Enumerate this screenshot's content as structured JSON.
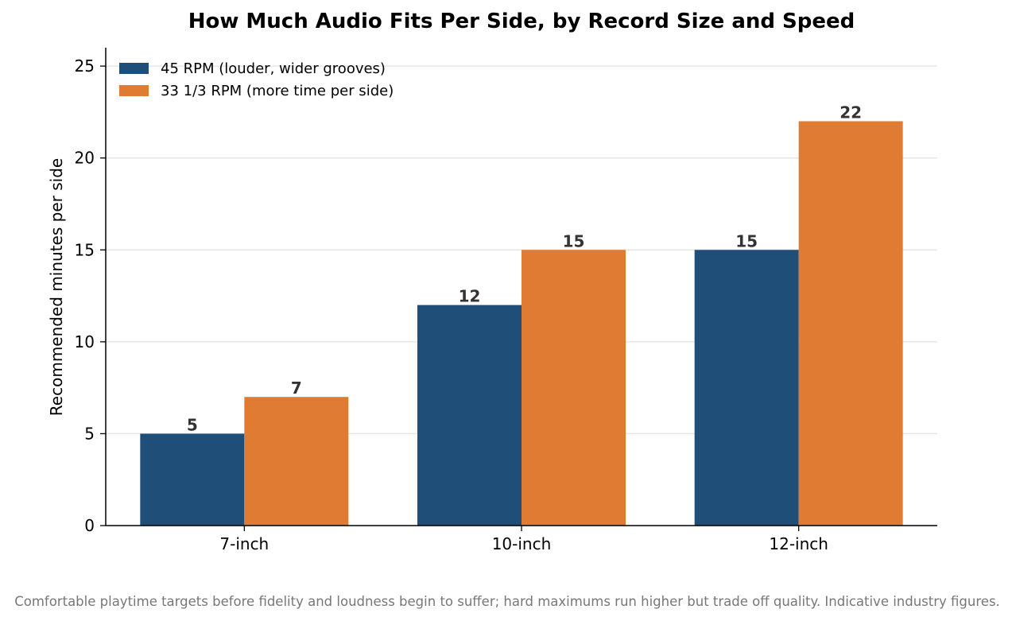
{
  "colors": {
    "series_45": "#1f4e79",
    "series_33": "#e07b33",
    "grid": "#e6e6e6",
    "axis": "#000000"
  },
  "caption": "Comfortable playtime targets before fidelity and loudness begin to suffer; hard maximums run higher but trade off quality. Indicative industry figures.",
  "chart_data": {
    "type": "bar",
    "title": "How Much Audio Fits Per Side, by Record Size and Speed",
    "xlabel": "",
    "ylabel": "Recommended minutes per side",
    "categories": [
      "7-inch",
      "10-inch",
      "12-inch"
    ],
    "series": [
      {
        "name": "45 RPM (louder, wider grooves)",
        "values": [
          5,
          12,
          15
        ]
      },
      {
        "name": "33 1/3 RPM (more time per side)",
        "values": [
          7,
          15,
          22
        ]
      }
    ],
    "ylim": [
      0,
      26
    ],
    "yticks": [
      0,
      5,
      10,
      15,
      20,
      25
    ],
    "grid": "horizontal",
    "legend": "top-left"
  }
}
